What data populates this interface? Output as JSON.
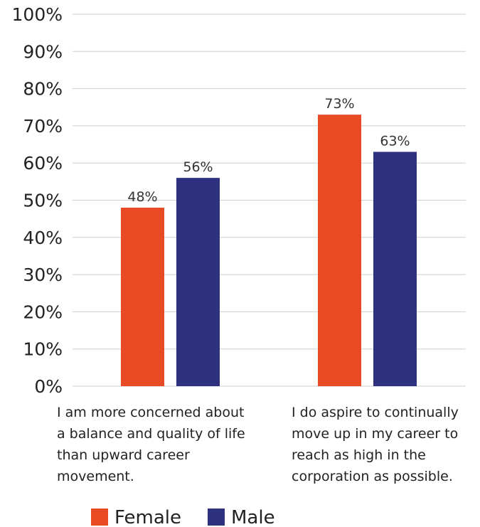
{
  "chart_data": {
    "type": "bar",
    "categories": [
      [
        "I am more concerned about",
        "a balance and quality of life",
        "than upward career",
        "movement."
      ],
      [
        "I do aspire to continually",
        "move up in my career to",
        "reach as high in the",
        "corporation as possible."
      ]
    ],
    "series": [
      {
        "name": "Female",
        "values": [
          48,
          73
        ],
        "labels": [
          "48%",
          "73%"
        ],
        "color": "#e84a24"
      },
      {
        "name": "Male",
        "values": [
          56,
          63
        ],
        "labels": [
          "56%",
          "63%"
        ],
        "color": "#2e3180"
      }
    ],
    "ylim": [
      0,
      100
    ],
    "yticks": [
      {
        "value": 0,
        "label": "0%"
      },
      {
        "value": 10,
        "label": "10%"
      },
      {
        "value": 20,
        "label": "20%"
      },
      {
        "value": 30,
        "label": "30%"
      },
      {
        "value": 40,
        "label": "40%"
      },
      {
        "value": 50,
        "label": "50%"
      },
      {
        "value": 60,
        "label": "60%"
      },
      {
        "value": 70,
        "label": "70%"
      },
      {
        "value": 80,
        "label": "80%"
      },
      {
        "value": 90,
        "label": "90%"
      },
      {
        "value": 100,
        "label": "100%"
      }
    ],
    "grid": true,
    "legend_position": "bottom-left"
  }
}
